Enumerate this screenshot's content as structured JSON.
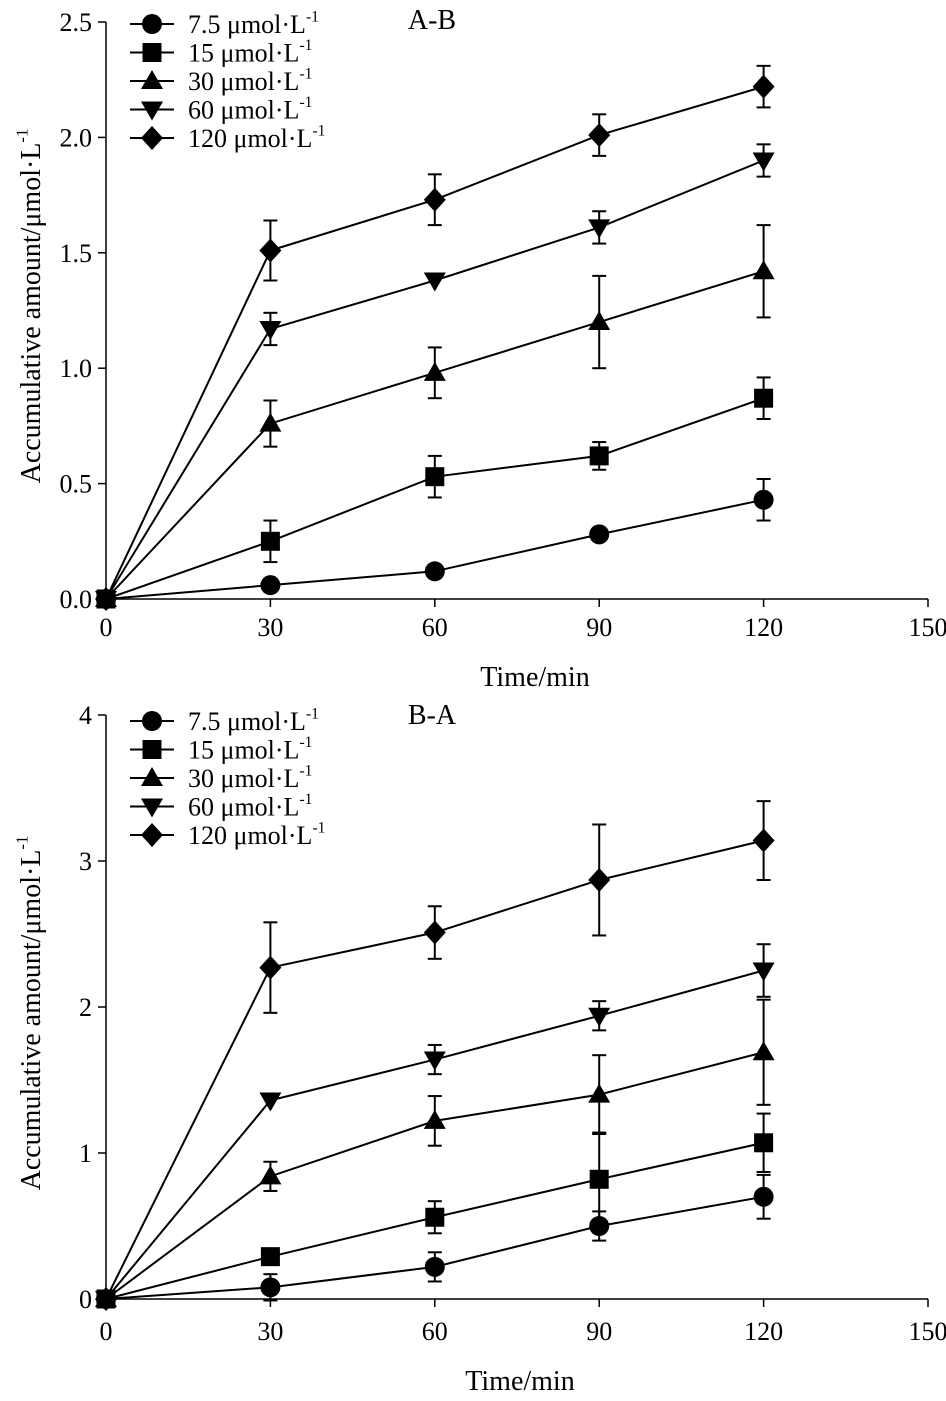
{
  "chart_data": [
    {
      "type": "line",
      "title": "A-B",
      "xlabel": "Time/min",
      "ylabel": "Accumulative amount/μmol·L",
      "ylabel_sup": "-1",
      "xlim": [
        0,
        150
      ],
      "ylim": [
        0,
        2.5
      ],
      "xticks": [
        0,
        30,
        60,
        90,
        120,
        150
      ],
      "xtick_labels": [
        "0",
        "30",
        "60",
        "90",
        "120",
        "150"
      ],
      "yticks": [
        0,
        0.5,
        1.0,
        1.5,
        2.0,
        2.5
      ],
      "ytick_labels": [
        "0.0",
        "0.5",
        "1.0",
        "1.5",
        "2.0",
        "2.5"
      ],
      "grid": false,
      "legend_position": "top-left",
      "x": [
        0,
        30,
        60,
        90,
        120
      ],
      "series": [
        {
          "name": "7.5 μmol·L",
          "sup": "-1",
          "marker": "circle",
          "values": [
            0,
            0.06,
            0.12,
            0.28,
            0.43
          ],
          "errors": [
            0,
            0,
            0,
            0,
            0.09
          ]
        },
        {
          "name": "15 μmol·L",
          "sup": "-1",
          "marker": "square",
          "values": [
            0,
            0.25,
            0.53,
            0.62,
            0.87
          ],
          "errors": [
            0,
            0.09,
            0.09,
            0.06,
            0.09
          ]
        },
        {
          "name": "30 μmol·L",
          "sup": "-1",
          "marker": "triangle-up",
          "values": [
            0,
            0.76,
            0.98,
            1.2,
            1.42
          ],
          "errors": [
            0,
            0.1,
            0.11,
            0.2,
            0.2
          ]
        },
        {
          "name": "60 μmol·L",
          "sup": "-1",
          "marker": "triangle-down",
          "values": [
            0,
            1.17,
            1.38,
            1.61,
            1.9
          ],
          "errors": [
            0,
            0.07,
            0,
            0.07,
            0.07
          ]
        },
        {
          "name": "120 μmol·L",
          "sup": "-1",
          "marker": "diamond",
          "values": [
            0,
            1.51,
            1.73,
            2.01,
            2.22
          ],
          "errors": [
            0,
            0.13,
            0.11,
            0.09,
            0.09
          ]
        }
      ]
    },
    {
      "type": "line",
      "title": "B-A",
      "xlabel": "Time/min",
      "ylabel": "Accumulative amount/μmol·L",
      "ylabel_sup": "-1",
      "xlim": [
        0,
        150
      ],
      "ylim": [
        0,
        4
      ],
      "xticks": [
        0,
        30,
        60,
        90,
        120,
        150
      ],
      "xtick_labels": [
        "0",
        "30",
        "60",
        "90",
        "120",
        "150"
      ],
      "yticks": [
        0,
        1,
        2,
        3,
        4
      ],
      "ytick_labels": [
        "0",
        "1",
        "2",
        "3",
        "4"
      ],
      "grid": false,
      "legend_position": "top-left",
      "x": [
        0,
        30,
        60,
        90,
        120
      ],
      "series": [
        {
          "name": "7.5 μmol·L",
          "sup": "-1",
          "marker": "circle",
          "values": [
            0,
            0.08,
            0.22,
            0.5,
            0.7
          ],
          "errors": [
            0,
            0.09,
            0.1,
            0.1,
            0.15
          ]
        },
        {
          "name": "15 μmol·L",
          "sup": "-1",
          "marker": "square",
          "values": [
            0,
            0.29,
            0.56,
            0.82,
            1.07
          ],
          "errors": [
            0,
            0,
            0.11,
            0.32,
            0.2
          ]
        },
        {
          "name": "30 μmol·L",
          "sup": "-1",
          "marker": "triangle-up",
          "values": [
            0,
            0.84,
            1.22,
            1.4,
            1.69
          ],
          "errors": [
            0,
            0.1,
            0.17,
            0.27,
            0.36
          ]
        },
        {
          "name": "60 μmol·L",
          "sup": "-1",
          "marker": "triangle-down",
          "values": [
            0,
            1.36,
            1.64,
            1.94,
            2.25
          ],
          "errors": [
            0,
            0,
            0.1,
            0.1,
            0.18
          ]
        },
        {
          "name": "120 μmol·L",
          "sup": "-1",
          "marker": "diamond",
          "values": [
            0,
            2.27,
            2.51,
            2.87,
            3.14
          ],
          "errors": [
            0,
            0.31,
            0.18,
            0.38,
            0.27
          ]
        }
      ]
    }
  ]
}
